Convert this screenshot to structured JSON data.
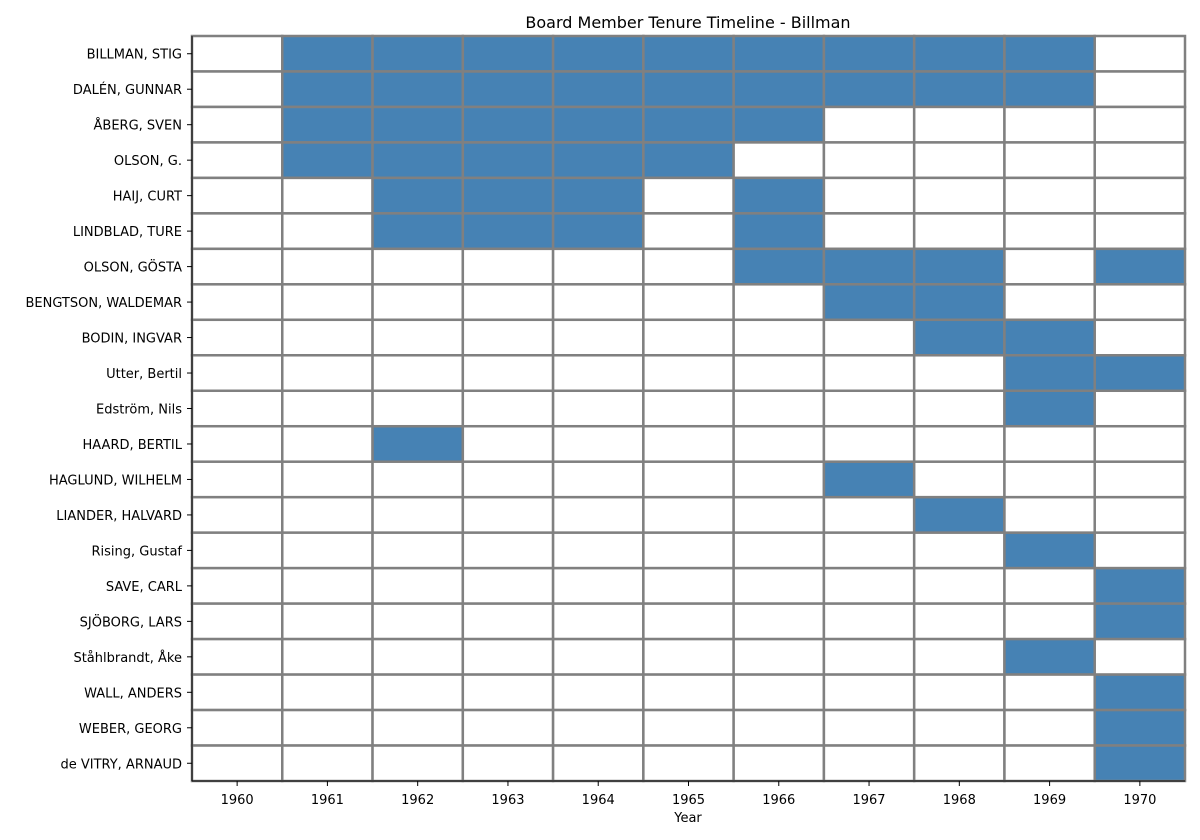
{
  "chart_data": {
    "type": "heatmap",
    "title": "Board Member Tenure Timeline - Billman",
    "xlabel": "Year",
    "ylabel": "",
    "x": [
      "1960",
      "1961",
      "1962",
      "1963",
      "1964",
      "1965",
      "1966",
      "1967",
      "1968",
      "1969",
      "1970"
    ],
    "rows": [
      {
        "name": "BILLMAN, STIG",
        "values": [
          0,
          1,
          1,
          1,
          1,
          1,
          1,
          1,
          1,
          1,
          0
        ]
      },
      {
        "name": "DALÉN, GUNNAR",
        "values": [
          0,
          1,
          1,
          1,
          1,
          1,
          1,
          1,
          1,
          1,
          0
        ]
      },
      {
        "name": "ÅBERG, SVEN",
        "values": [
          0,
          1,
          1,
          1,
          1,
          1,
          1,
          0,
          0,
          0,
          0
        ]
      },
      {
        "name": "OLSON, G.",
        "values": [
          0,
          1,
          1,
          1,
          1,
          1,
          0,
          0,
          0,
          0,
          0
        ]
      },
      {
        "name": "HAIJ, CURT",
        "values": [
          0,
          0,
          1,
          1,
          1,
          0,
          1,
          0,
          0,
          0,
          0
        ]
      },
      {
        "name": "LINDBLAD, TURE",
        "values": [
          0,
          0,
          1,
          1,
          1,
          0,
          1,
          0,
          0,
          0,
          0
        ]
      },
      {
        "name": "OLSON, GÖSTA",
        "values": [
          0,
          0,
          0,
          0,
          0,
          0,
          1,
          1,
          1,
          0,
          1
        ]
      },
      {
        "name": "BENGTSON, WALDEMAR",
        "values": [
          0,
          0,
          0,
          0,
          0,
          0,
          0,
          1,
          1,
          0,
          0
        ]
      },
      {
        "name": "BODIN, INGVAR",
        "values": [
          0,
          0,
          0,
          0,
          0,
          0,
          0,
          0,
          1,
          1,
          0
        ]
      },
      {
        "name": "Utter, Bertil",
        "values": [
          0,
          0,
          0,
          0,
          0,
          0,
          0,
          0,
          0,
          1,
          1
        ]
      },
      {
        "name": "Edström, Nils",
        "values": [
          0,
          0,
          0,
          0,
          0,
          0,
          0,
          0,
          0,
          1,
          0
        ]
      },
      {
        "name": "HAARD, BERTIL",
        "values": [
          0,
          0,
          1,
          0,
          0,
          0,
          0,
          0,
          0,
          0,
          0
        ]
      },
      {
        "name": "HAGLUND, WILHELM",
        "values": [
          0,
          0,
          0,
          0,
          0,
          0,
          0,
          1,
          0,
          0,
          0
        ]
      },
      {
        "name": "LIANDER, HALVARD",
        "values": [
          0,
          0,
          0,
          0,
          0,
          0,
          0,
          0,
          1,
          0,
          0
        ]
      },
      {
        "name": "Rising, Gustaf",
        "values": [
          0,
          0,
          0,
          0,
          0,
          0,
          0,
          0,
          0,
          1,
          0
        ]
      },
      {
        "name": "SAVE, CARL",
        "values": [
          0,
          0,
          0,
          0,
          0,
          0,
          0,
          0,
          0,
          0,
          1
        ]
      },
      {
        "name": "SJÖBORG, LARS",
        "values": [
          0,
          0,
          0,
          0,
          0,
          0,
          0,
          0,
          0,
          0,
          1
        ]
      },
      {
        "name": "Ståhlbrandt, Åke",
        "values": [
          0,
          0,
          0,
          0,
          0,
          0,
          0,
          0,
          0,
          1,
          0
        ]
      },
      {
        "name": "WALL, ANDERS",
        "values": [
          0,
          0,
          0,
          0,
          0,
          0,
          0,
          0,
          0,
          0,
          1
        ]
      },
      {
        "name": "WEBER, GEORG",
        "values": [
          0,
          0,
          0,
          0,
          0,
          0,
          0,
          0,
          0,
          0,
          1
        ]
      },
      {
        "name": "de VITRY, ARNAUD",
        "values": [
          0,
          0,
          0,
          0,
          0,
          0,
          0,
          0,
          0,
          0,
          1
        ]
      }
    ],
    "colors": {
      "on": "#4682b4",
      "off": "#ffffff",
      "grid": "#808080",
      "axis": "#000000"
    }
  }
}
